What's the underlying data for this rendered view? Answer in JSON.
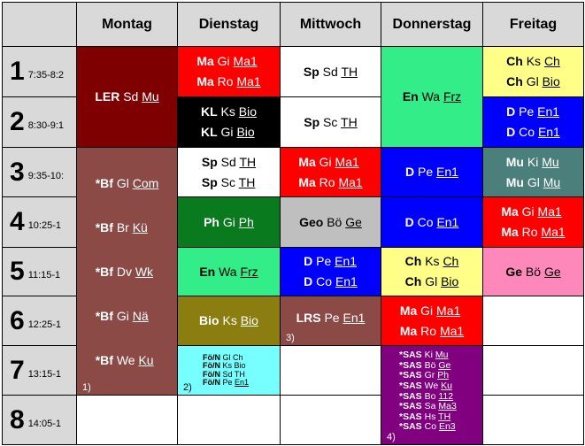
{
  "days": [
    "Montag",
    "Dienstag",
    "Mittwoch",
    "Donnerstag",
    "Freitag"
  ],
  "periods": [
    {
      "num": "1",
      "time": "7:35-8:2"
    },
    {
      "num": "2",
      "time": "8:30-9:1"
    },
    {
      "num": "3",
      "time": "9:35-10:"
    },
    {
      "num": "4",
      "time": "10:25-1"
    },
    {
      "num": "5",
      "time": "11:15-1"
    },
    {
      "num": "6",
      "time": "12:25-1"
    },
    {
      "num": "7",
      "time": "13:15-1"
    },
    {
      "num": "8",
      "time": "14:05-1"
    }
  ],
  "colors": {
    "header": "#d9d9d9",
    "maroon": "#7f0000",
    "brown": "#8b4a45",
    "red": "#ff0000",
    "black": "#000000",
    "white": "#ffffff",
    "green": "#0a7a1e",
    "mint": "#33ee88",
    "blue": "#0000ff",
    "yellow": "#ffff88",
    "teal": "#4b7f7b",
    "pink": "#ff88bb",
    "olive": "#8c7d10",
    "gray": "#bfbfbf",
    "cyan": "#77ffff",
    "purple": "#800080"
  },
  "blocks": [
    {
      "id": "mon-ler",
      "lines": [
        [
          {
            "t": "LER",
            "b": true
          },
          {
            "t": " Sd "
          },
          {
            "t": "Mu",
            "u": true
          }
        ]
      ]
    },
    {
      "id": "mon-bf",
      "footnote": "1)",
      "lines": [
        [
          {
            "t": "*Bf",
            "b": true
          },
          {
            "t": " Gl   "
          },
          {
            "t": "Com",
            "u": true
          }
        ],
        [
          {
            "t": "*Bf",
            "b": true
          },
          {
            "t": " Br   "
          },
          {
            "t": "Kü",
            "u": true
          }
        ],
        [
          {
            "t": "*Bf",
            "b": true
          },
          {
            "t": " Dv   "
          },
          {
            "t": "Wk",
            "u": true
          }
        ],
        [
          {
            "t": "*Bf",
            "b": true
          },
          {
            "t": " Gi   "
          },
          {
            "t": "Nä",
            "u": true
          }
        ],
        [
          {
            "t": "*Bf",
            "b": true
          },
          {
            "t": " We "
          },
          {
            "t": "Ku",
            "u": true
          }
        ]
      ]
    },
    {
      "id": "die-1",
      "lines": [
        [
          {
            "t": "Ma",
            "b": true
          },
          {
            "t": " Gi  "
          },
          {
            "t": "Ma1",
            "u": true
          }
        ],
        [
          {
            "t": "Ma",
            "b": true
          },
          {
            "t": " Ro "
          },
          {
            "t": "Ma1",
            "u": true
          }
        ]
      ]
    },
    {
      "id": "die-2",
      "lines": [
        [
          {
            "t": "KL",
            "b": true
          },
          {
            "t": " Ks "
          },
          {
            "t": "Bio",
            "u": true
          }
        ],
        [
          {
            "t": "KL",
            "b": true
          },
          {
            "t": " Gi "
          },
          {
            "t": "Bio",
            "u": true
          }
        ]
      ]
    },
    {
      "id": "die-3",
      "lines": [
        [
          {
            "t": "Sp",
            "b": true
          },
          {
            "t": " Sd "
          },
          {
            "t": "TH",
            "u": true
          }
        ],
        [
          {
            "t": "Sp",
            "b": true
          },
          {
            "t": " Sc "
          },
          {
            "t": "TH",
            "u": true
          }
        ]
      ]
    },
    {
      "id": "die-4",
      "lines": [
        [
          {
            "t": "Ph",
            "b": true
          },
          {
            "t": " Gi "
          },
          {
            "t": "Ph",
            "u": true
          }
        ]
      ]
    },
    {
      "id": "die-5",
      "lines": [
        [
          {
            "t": "En",
            "b": true
          },
          {
            "t": " Wa "
          },
          {
            "t": "Frz",
            "u": true
          }
        ]
      ]
    },
    {
      "id": "die-6",
      "lines": [
        [
          {
            "t": "Bio",
            "b": true
          },
          {
            "t": " Ks "
          },
          {
            "t": "Bio",
            "u": true
          }
        ]
      ]
    },
    {
      "id": "die-7",
      "footnote": "2)",
      "lines": [
        [
          {
            "t": "Fö/N",
            "b": true
          },
          {
            "t": " Gl  "
          },
          {
            "t": "Ch"
          }
        ],
        [
          {
            "t": "Fö/N",
            "b": true
          },
          {
            "t": " Ks "
          },
          {
            "t": "Bio"
          }
        ],
        [
          {
            "t": "Fö/N",
            "b": true
          },
          {
            "t": " Sd "
          },
          {
            "t": "TH"
          }
        ],
        [
          {
            "t": "Fö/N",
            "b": true
          },
          {
            "t": " Pe "
          },
          {
            "t": "En1",
            "u": true
          }
        ]
      ]
    },
    {
      "id": "mit-1",
      "lines": [
        [
          {
            "t": "Sp",
            "b": true
          },
          {
            "t": " Sd "
          },
          {
            "t": "TH",
            "u": true
          }
        ]
      ]
    },
    {
      "id": "mit-2",
      "lines": [
        [
          {
            "t": "Sp",
            "b": true
          },
          {
            "t": " Sc "
          },
          {
            "t": "TH",
            "u": true
          }
        ]
      ]
    },
    {
      "id": "mit-3",
      "lines": [
        [
          {
            "t": "Ma",
            "b": true
          },
          {
            "t": " Gi  "
          },
          {
            "t": "Ma1",
            "u": true
          }
        ],
        [
          {
            "t": "Ma",
            "b": true
          },
          {
            "t": " Ro "
          },
          {
            "t": "Ma1",
            "u": true
          }
        ]
      ]
    },
    {
      "id": "mit-4",
      "lines": [
        [
          {
            "t": "Geo",
            "b": true
          },
          {
            "t": " Bö "
          },
          {
            "t": "Ge",
            "u": true
          }
        ]
      ]
    },
    {
      "id": "mit-5",
      "lines": [
        [
          {
            "t": "D",
            "b": true
          },
          {
            "t": " Pe "
          },
          {
            "t": "En1",
            "u": true
          }
        ],
        [
          {
            "t": "D",
            "b": true
          },
          {
            "t": " Co "
          },
          {
            "t": "En1",
            "u": true
          }
        ]
      ]
    },
    {
      "id": "mit-6",
      "footnote": "3)",
      "lines": [
        [
          {
            "t": "LRS",
            "b": true
          },
          {
            "t": " Pe "
          },
          {
            "t": "En1",
            "u": true
          }
        ]
      ]
    },
    {
      "id": "don-12",
      "lines": [
        [
          {
            "t": "En",
            "b": true
          },
          {
            "t": " Wa "
          },
          {
            "t": "Frz",
            "u": true
          }
        ]
      ]
    },
    {
      "id": "don-3",
      "lines": [
        [
          {
            "t": "D",
            "b": true
          },
          {
            "t": " Pe "
          },
          {
            "t": "En1",
            "u": true
          }
        ]
      ]
    },
    {
      "id": "don-4",
      "lines": [
        [
          {
            "t": "D",
            "b": true
          },
          {
            "t": " Co "
          },
          {
            "t": "En1",
            "u": true
          }
        ]
      ]
    },
    {
      "id": "don-5",
      "lines": [
        [
          {
            "t": "Ch",
            "b": true
          },
          {
            "t": " Ks "
          },
          {
            "t": "Ch",
            "u": true
          }
        ],
        [
          {
            "t": "Ch",
            "b": true
          },
          {
            "t": " Gl "
          },
          {
            "t": "Bio",
            "u": true
          }
        ]
      ]
    },
    {
      "id": "don-6",
      "lines": [
        [
          {
            "t": "Ma",
            "b": true
          },
          {
            "t": " Gi  "
          },
          {
            "t": "Ma1",
            "u": true
          }
        ],
        [
          {
            "t": "Ma",
            "b": true
          },
          {
            "t": " Ro "
          },
          {
            "t": "Ma1",
            "u": true
          }
        ]
      ]
    },
    {
      "id": "don-78",
      "footnote": "4)",
      "lines": [
        [
          {
            "t": "*SAS",
            "b": true
          },
          {
            "t": " Ki  "
          },
          {
            "t": "Mu",
            "u": true
          }
        ],
        [
          {
            "t": "*SAS",
            "b": true
          },
          {
            "t": " Bö "
          },
          {
            "t": "Ge",
            "u": true
          }
        ],
        [
          {
            "t": "*SAS",
            "b": true
          },
          {
            "t": " Gr  "
          },
          {
            "t": "Ph",
            "u": true
          }
        ],
        [
          {
            "t": "*SAS",
            "b": true
          },
          {
            "t": " We "
          },
          {
            "t": "Ku",
            "u": true
          }
        ],
        [
          {
            "t": "*SAS",
            "b": true
          },
          {
            "t": " Bo  "
          },
          {
            "t": "112",
            "u": true
          }
        ],
        [
          {
            "t": "*SAS",
            "b": true
          },
          {
            "t": " Sa  "
          },
          {
            "t": "Ma3",
            "u": true
          }
        ],
        [
          {
            "t": "*SAS",
            "b": true
          },
          {
            "t": " Hs  "
          },
          {
            "t": "TH",
            "u": true
          }
        ],
        [
          {
            "t": "*SAS",
            "b": true
          },
          {
            "t": " Co  "
          },
          {
            "t": "En3",
            "u": true
          }
        ]
      ]
    },
    {
      "id": "fre-1",
      "lines": [
        [
          {
            "t": "Ch",
            "b": true
          },
          {
            "t": " Ks "
          },
          {
            "t": "Ch",
            "u": true
          }
        ],
        [
          {
            "t": "Ch",
            "b": true
          },
          {
            "t": " Gl "
          },
          {
            "t": "Bio",
            "u": true
          }
        ]
      ]
    },
    {
      "id": "fre-2",
      "lines": [
        [
          {
            "t": "D",
            "b": true
          },
          {
            "t": " Pe "
          },
          {
            "t": "En1",
            "u": true
          }
        ],
        [
          {
            "t": "D",
            "b": true
          },
          {
            "t": " Co "
          },
          {
            "t": "En1",
            "u": true
          }
        ]
      ]
    },
    {
      "id": "fre-3",
      "lines": [
        [
          {
            "t": "Mu",
            "b": true
          },
          {
            "t": " Ki "
          },
          {
            "t": "Mu",
            "u": true
          }
        ],
        [
          {
            "t": "Mu",
            "b": true
          },
          {
            "t": " Gl "
          },
          {
            "t": "Mu",
            "u": true
          }
        ]
      ]
    },
    {
      "id": "fre-4",
      "lines": [
        [
          {
            "t": "Ma",
            "b": true
          },
          {
            "t": " Gi  "
          },
          {
            "t": "Ma1",
            "u": true
          }
        ],
        [
          {
            "t": "Ma",
            "b": true
          },
          {
            "t": " Ro "
          },
          {
            "t": "Ma1",
            "u": true
          }
        ]
      ]
    },
    {
      "id": "fre-5",
      "lines": [
        [
          {
            "t": "Ge",
            "b": true
          },
          {
            "t": " Bö "
          },
          {
            "t": "Ge",
            "u": true
          }
        ]
      ]
    }
  ]
}
